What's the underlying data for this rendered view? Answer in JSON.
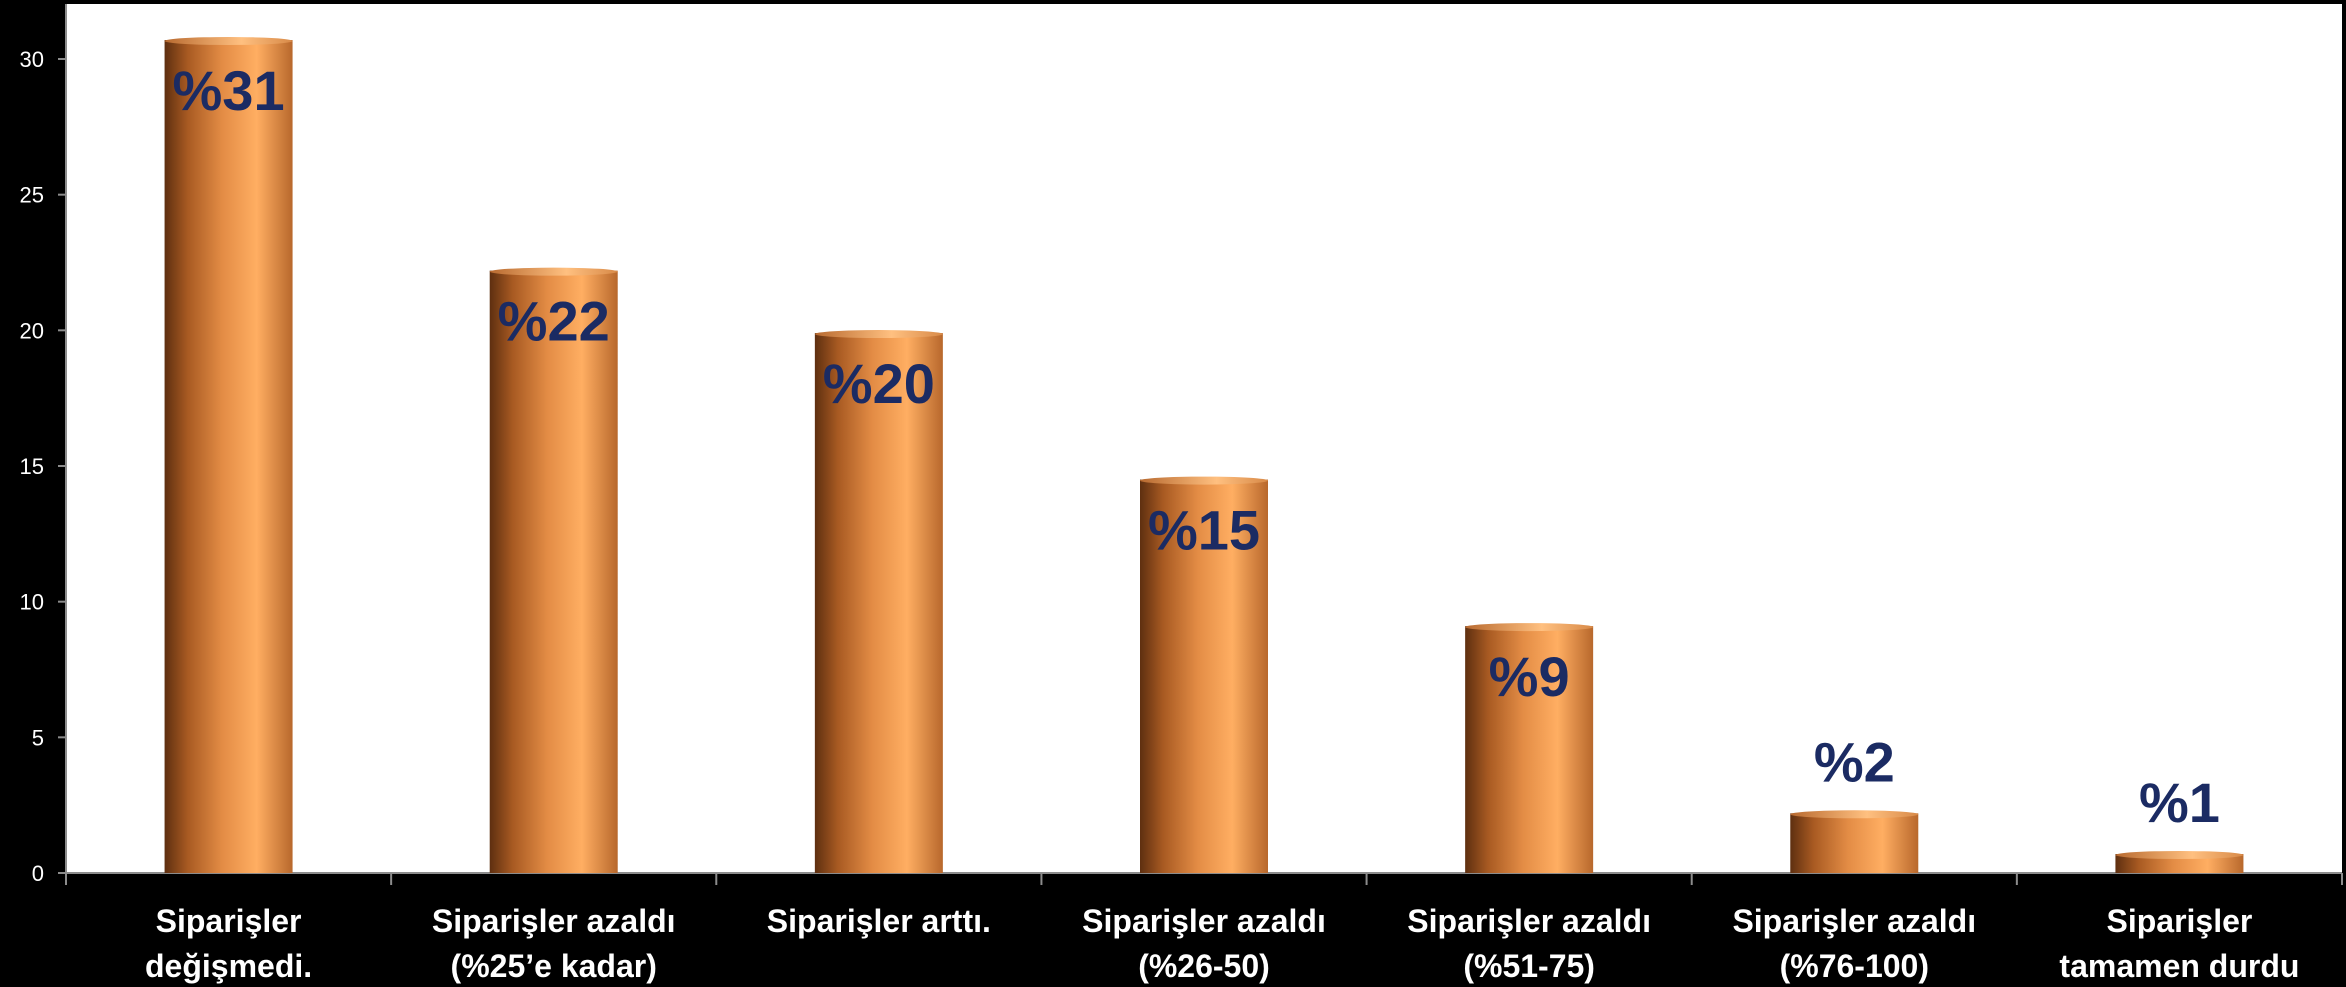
{
  "chart_data": {
    "type": "bar",
    "categories": [
      [
        "Siparişler",
        "değişmedi."
      ],
      [
        "Siparişler azaldı",
        "(%25’e kadar)"
      ],
      [
        "Siparişler arttı."
      ],
      [
        "Siparişler azaldı",
        "(%26-50)"
      ],
      [
        "Siparişler azaldı",
        "(%51-75)"
      ],
      [
        "Siparişler azaldı",
        "(%76-100)"
      ],
      [
        "Siparişler",
        "tamamen durdu"
      ]
    ],
    "values": [
      30.7,
      22.2,
      19.9,
      14.5,
      9.1,
      2.2,
      0.7
    ],
    "data_labels": [
      "%31",
      "%22",
      "%20",
      "%15",
      "%9",
      "%2",
      "%1"
    ],
    "yticks": [
      0,
      5,
      10,
      15,
      20,
      25,
      30
    ],
    "ylim": [
      0,
      32
    ],
    "grid": false,
    "colors": {
      "background": "#000000",
      "plot_area": "#ffffff",
      "bar_dark": "#5e2f10",
      "bar_mid": "#d9833f",
      "bar_light": "#ffae62",
      "label": "#1b2b63",
      "axis_text": "#ffffff"
    }
  }
}
